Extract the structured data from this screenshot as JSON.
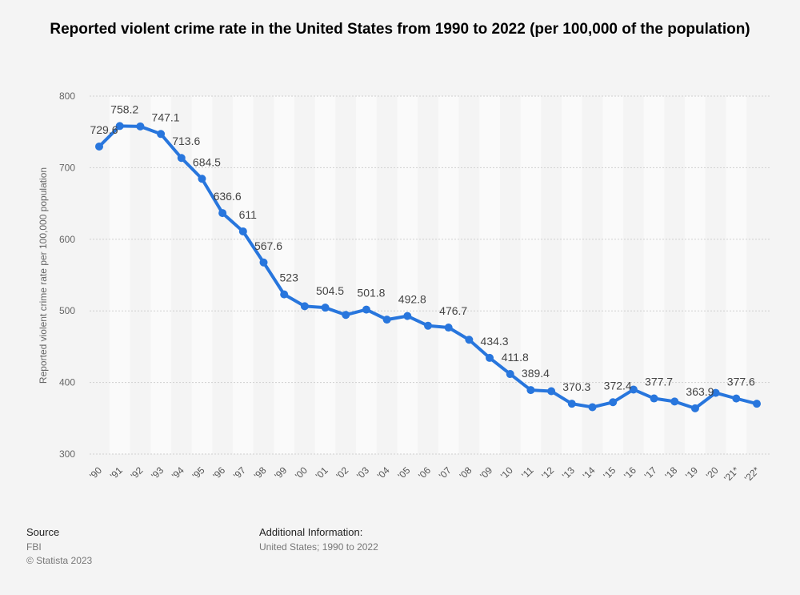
{
  "chart_data": {
    "type": "line",
    "title": "Reported violent crime rate in the United States from 1990 to 2022 (per 100,000 of the population)",
    "xlabel": "",
    "ylabel": "Reported violent crime rate per 100,000 population",
    "ylim": [
      300,
      800
    ],
    "yticks": [
      "300",
      "400",
      "500",
      "600",
      "700",
      "800"
    ],
    "grid": true,
    "color": "#2876dd",
    "categories": [
      "'90",
      "'91",
      "'92",
      "'93",
      "'94",
      "'95",
      "'96",
      "'97",
      "'98",
      "'99",
      "'00",
      "'01",
      "'02",
      "'03",
      "'04",
      "'05",
      "'06",
      "'07",
      "'08",
      "'09",
      "'10",
      "'11",
      "'12",
      "'13",
      "'14",
      "'15",
      "'16",
      "'17",
      "'18",
      "'19",
      "'20",
      "'21*",
      "'22*"
    ],
    "values": [
      729.6,
      758.2,
      757.7,
      747.1,
      713.6,
      684.5,
      636.6,
      611,
      567.6,
      523,
      506.5,
      504.5,
      494.4,
      501.8,
      487.8,
      492.8,
      479.3,
      476.7,
      459.7,
      434.3,
      411.8,
      389.4,
      387.8,
      370.3,
      365.5,
      372.4,
      390.1,
      377.7,
      373.4,
      363.9,
      385.5,
      377.6,
      370.3
    ],
    "data_labels": [
      "729.6",
      "758.2",
      "",
      "747.1",
      "713.6",
      "684.5",
      "636.6",
      "611",
      "567.6",
      "523",
      "",
      "504.5",
      "",
      "501.8",
      "",
      "492.8",
      "",
      "476.7",
      "",
      "434.3",
      "411.8",
      "389.4",
      "",
      "370.3",
      "",
      "372.4",
      "",
      "377.7",
      "",
      "363.9",
      "",
      "377.6",
      ""
    ]
  },
  "footer": {
    "source_heading": "Source",
    "source": "FBI",
    "copyright": "© Statista 2023",
    "info_heading": "Additional Information:",
    "info": "United States; 1990 to 2022"
  }
}
